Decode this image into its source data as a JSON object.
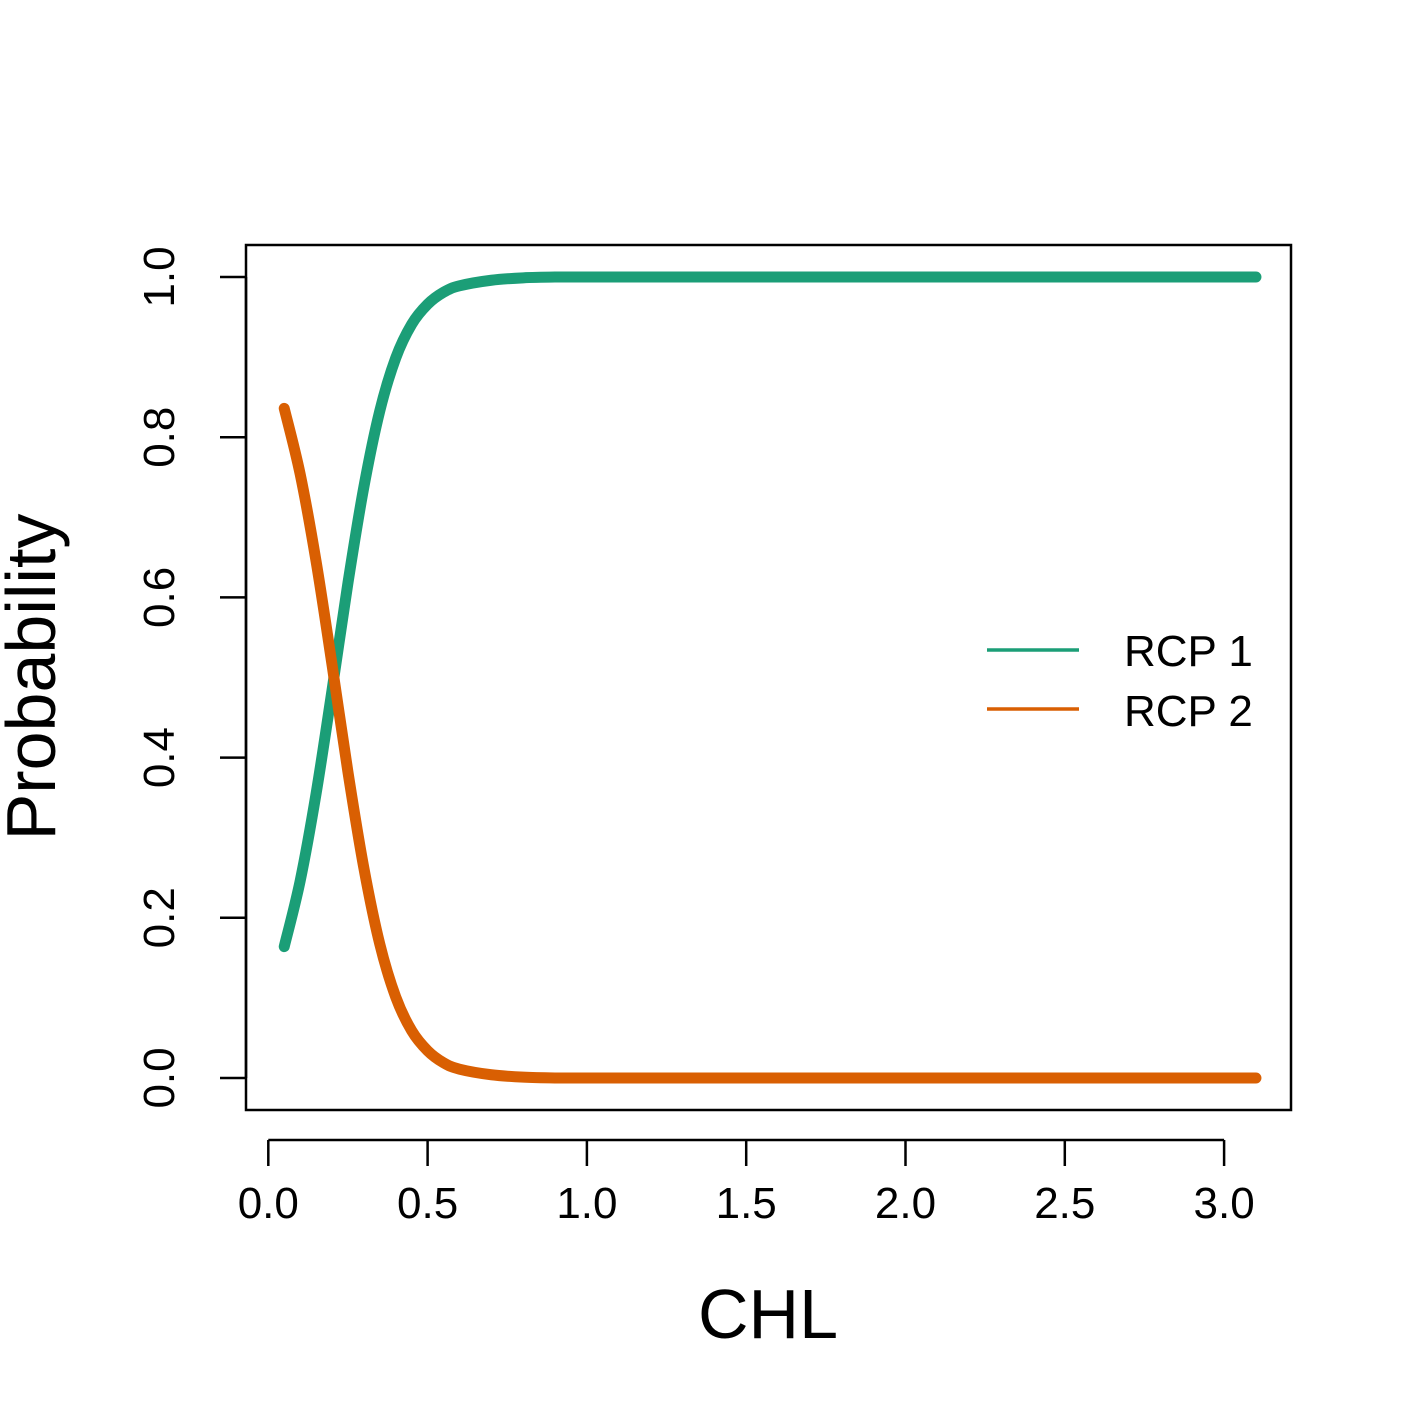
{
  "chart_data": {
    "type": "line",
    "xlabel": "CHL",
    "ylabel": "Probability",
    "xlim": [
      -0.07,
      3.21
    ],
    "ylim": [
      -0.04,
      1.04
    ],
    "x_ticks": [
      0.0,
      0.5,
      1.0,
      1.5,
      2.0,
      2.5,
      3.0
    ],
    "x_tick_labels": [
      "0.0",
      "0.5",
      "1.0",
      "1.5",
      "2.0",
      "2.5",
      "3.0"
    ],
    "y_ticks": [
      0.0,
      0.2,
      0.4,
      0.6,
      0.8,
      1.0
    ],
    "y_tick_labels": [
      "0.0",
      "0.2",
      "0.4",
      "0.6",
      "0.8",
      "1.0"
    ],
    "grid": false,
    "legend_position": "right",
    "x": [
      0.05,
      0.1,
      0.15,
      0.2,
      0.25,
      0.3,
      0.35,
      0.4,
      0.45,
      0.5,
      0.55,
      0.6,
      0.7,
      0.8,
      0.9,
      1.0,
      1.2,
      1.5,
      2.0,
      2.5,
      3.0,
      3.1
    ],
    "series": [
      {
        "name": "RCP 1",
        "color": "#1b9e77",
        "values": [
          0.164,
          0.246,
          0.355,
          0.484,
          0.618,
          0.738,
          0.833,
          0.899,
          0.941,
          0.966,
          0.981,
          0.989,
          0.996,
          0.999,
          1.0,
          1.0,
          1.0,
          1.0,
          1.0,
          1.0,
          1.0,
          1.0
        ]
      },
      {
        "name": "RCP 2",
        "color": "#d95f02",
        "values": [
          0.836,
          0.754,
          0.645,
          0.516,
          0.382,
          0.262,
          0.167,
          0.101,
          0.059,
          0.034,
          0.019,
          0.011,
          0.004,
          0.001,
          0.0,
          0.0,
          0.0,
          0.0,
          0.0,
          0.0,
          0.0,
          0.0
        ]
      }
    ]
  }
}
